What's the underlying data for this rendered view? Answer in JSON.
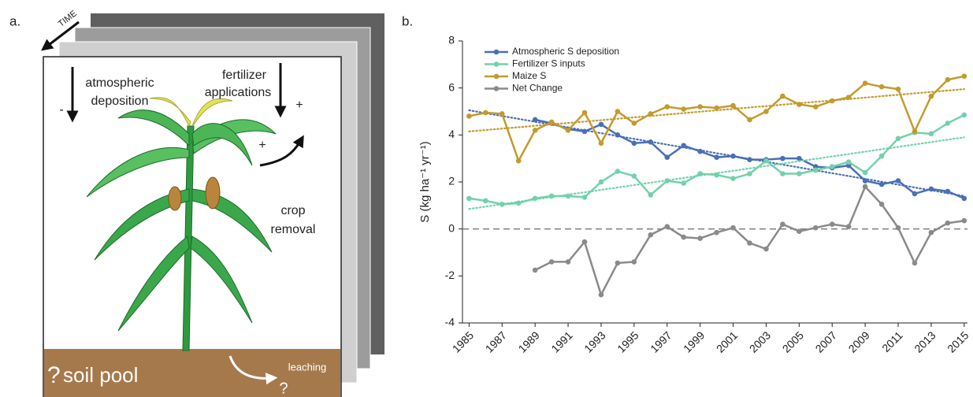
{
  "panel_a": {
    "label": "a.",
    "time": "TIME",
    "minus": "-",
    "atmospheric": [
      "atmospheric",
      "deposition"
    ],
    "fertilizer": [
      "fertilizer",
      "applications"
    ],
    "plus_top": "+",
    "plus_crop": "+",
    "crop": [
      "crop",
      "removal"
    ],
    "soil_question": "?",
    "soil": "soil pool",
    "leaching": "leaching",
    "leaching_question": "?"
  },
  "chart_data": {
    "type": "line",
    "panel_label": "b.",
    "y_label": "S (kg ha⁻¹ yr⁻¹)",
    "x": [
      1985,
      1986,
      1987,
      1988,
      1989,
      1990,
      1991,
      1992,
      1993,
      1994,
      1995,
      1996,
      1997,
      1998,
      1999,
      2000,
      2001,
      2002,
      2003,
      2004,
      2005,
      2006,
      2007,
      2008,
      2009,
      2010,
      2011,
      2012,
      2013,
      2014,
      2015
    ],
    "xlim": [
      1984.6,
      2015.2
    ],
    "xticks": [
      1985,
      1987,
      1989,
      1991,
      1993,
      1995,
      1997,
      1999,
      2001,
      2003,
      2005,
      2007,
      2009,
      2011,
      2013,
      2015
    ],
    "ylim": [
      -4,
      8
    ],
    "yticks": [
      -4,
      -2,
      0,
      2,
      4,
      6,
      8
    ],
    "hline": 0,
    "trend_x": [
      1985,
      2015
    ],
    "series": [
      {
        "name": "Atmospheric S deposition",
        "color": "#4a6fb5",
        "trend": [
          5.05,
          1.4
        ],
        "values": [
          null,
          null,
          null,
          null,
          4.65,
          4.5,
          4.25,
          4.15,
          4.45,
          4.0,
          3.65,
          3.7,
          3.05,
          3.55,
          3.3,
          3.05,
          3.1,
          2.95,
          2.95,
          3.0,
          3.0,
          2.65,
          2.6,
          2.7,
          2.05,
          1.9,
          2.05,
          1.5,
          1.7,
          1.6,
          1.3
        ]
      },
      {
        "name": "Fertilizer S inputs",
        "color": "#72d1ab",
        "trend": [
          0.85,
          3.9
        ],
        "values": [
          1.3,
          1.2,
          1.05,
          1.1,
          1.3,
          1.4,
          1.4,
          1.35,
          2.0,
          2.45,
          2.25,
          1.45,
          2.05,
          1.95,
          2.35,
          2.3,
          2.15,
          2.35,
          2.9,
          2.35,
          2.35,
          2.5,
          2.65,
          2.85,
          2.4,
          3.1,
          3.85,
          4.1,
          4.05,
          4.5,
          4.85
        ]
      },
      {
        "name": "Maize S",
        "color": "#c49a2c",
        "trend": [
          4.15,
          5.95
        ],
        "values": [
          4.8,
          4.95,
          4.9,
          2.9,
          4.2,
          4.55,
          4.2,
          4.95,
          3.65,
          5.0,
          4.5,
          4.9,
          5.2,
          5.1,
          5.2,
          5.15,
          5.25,
          4.65,
          5.0,
          5.65,
          5.3,
          5.2,
          5.45,
          5.6,
          6.2,
          6.05,
          5.95,
          4.15,
          5.65,
          6.35,
          6.5
        ]
      },
      {
        "name": "Net Change",
        "color": "#8a8a8a",
        "values": [
          null,
          null,
          null,
          null,
          -1.75,
          -1.4,
          -1.4,
          -0.55,
          -2.8,
          -1.45,
          -1.4,
          -0.25,
          0.1,
          -0.35,
          -0.4,
          -0.15,
          0.05,
          -0.6,
          -0.85,
          0.2,
          -0.1,
          0.05,
          0.2,
          0.1,
          1.8,
          1.05,
          0.05,
          -1.45,
          -0.15,
          0.25,
          0.35
        ]
      }
    ]
  }
}
